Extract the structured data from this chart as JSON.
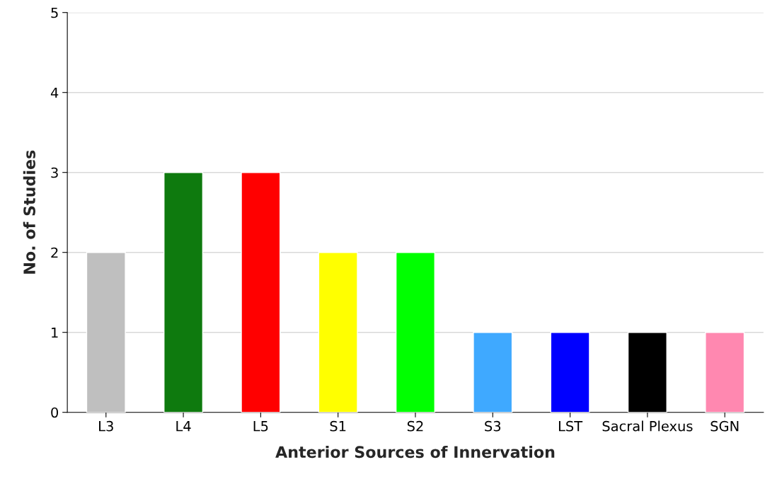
{
  "chart_data": {
    "type": "bar",
    "xlabel": "Anterior Sources of Innervation",
    "ylabel": "No. of Studies",
    "categories": [
      "L3",
      "L4",
      "L5",
      "S1",
      "S2",
      "S3",
      "LST",
      "Sacral Plexus",
      "SGN"
    ],
    "values": [
      2,
      3,
      3,
      2,
      2,
      1,
      1,
      1,
      1
    ],
    "colors": [
      "#bfbfbf",
      "#0e7a0e",
      "#ff0000",
      "#ffff00",
      "#00ff00",
      "#3fa9ff",
      "#0000ff",
      "#000000",
      "#ff88b0"
    ],
    "ylim": [
      0,
      5
    ],
    "yticks": [
      0,
      1,
      2,
      3,
      4,
      5
    ],
    "grid": "y",
    "legend": false
  }
}
